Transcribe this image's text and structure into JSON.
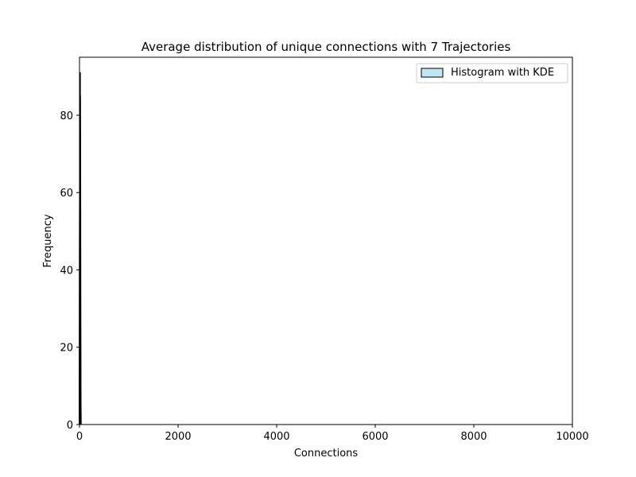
{
  "chart_data": {
    "type": "bar",
    "title": "Average distribution of unique connections with 7 Trajectories",
    "xlabel": "Connections",
    "ylabel": "Frequency",
    "xlim": [
      0,
      10000
    ],
    "ylim": [
      0,
      95
    ],
    "x_ticks": [
      "0",
      "2000",
      "4000",
      "6000",
      "8000",
      "10000"
    ],
    "y_ticks": [
      "0",
      "20",
      "40",
      "60",
      "80"
    ],
    "x_tick_values": [
      0,
      2000,
      4000,
      6000,
      8000,
      10000
    ],
    "y_tick_values": [
      0,
      20,
      40,
      60,
      80
    ],
    "legend": {
      "position": "top-right",
      "entries": [
        "Histogram with KDE"
      ]
    },
    "grid": false,
    "series": [
      {
        "name": "Histogram with KDE",
        "bins": [
          {
            "x0": 0,
            "x1": 5,
            "value": 5
          },
          {
            "x0": 5,
            "x1": 10,
            "value": 60
          },
          {
            "x0": 10,
            "x1": 15,
            "value": 91
          },
          {
            "x0": 15,
            "x1": 20,
            "value": 65
          }
        ]
      }
    ],
    "kde": {
      "x": [
        0,
        4,
        8,
        12,
        16,
        20,
        24,
        28
      ],
      "y": [
        0,
        40,
        60,
        85,
        70,
        30,
        5,
        0
      ]
    },
    "colors": {
      "bar_fill": "#bfe6f5",
      "bar_edge": "#000000",
      "kde": "#000000"
    }
  }
}
